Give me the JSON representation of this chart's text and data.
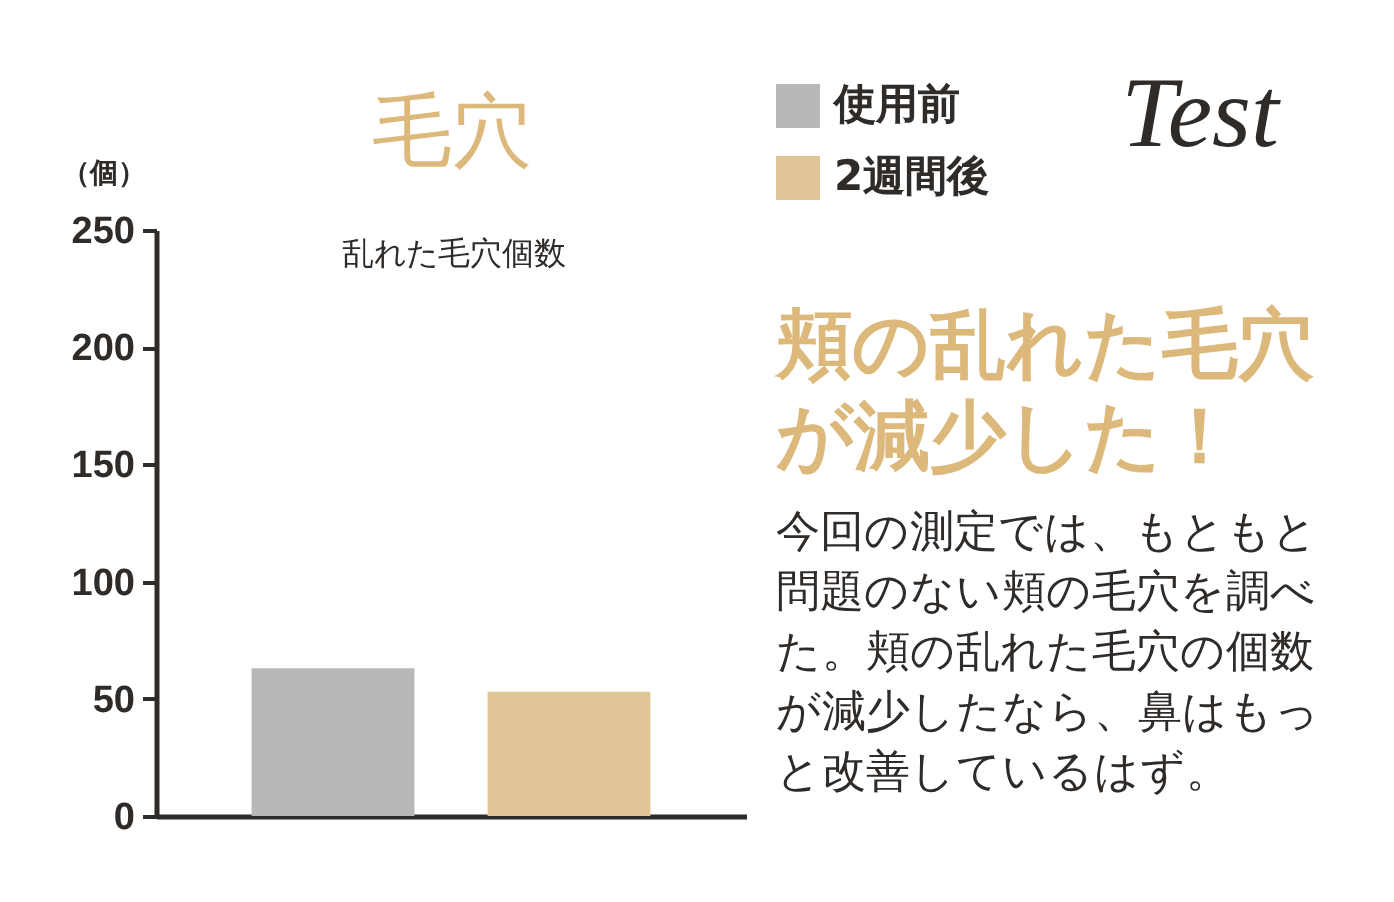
{
  "chart_data": {
    "type": "bar",
    "title": "毛穴",
    "subtitle": "乱れた毛穴個数",
    "ylabel": "（個）",
    "categories": [
      null,
      null
    ],
    "series": [
      {
        "name": "使用前",
        "color": "#b7b8b7",
        "values": [
          63,
          null
        ]
      },
      {
        "name": "2週間後",
        "color": "#e2c596",
        "values": [
          null,
          53
        ]
      }
    ],
    "ylim": [
      0,
      250
    ],
    "yticks": [
      0,
      50,
      100,
      150,
      200,
      250
    ],
    "legend": "top right",
    "tick_labels": "y",
    "annotations": [
      "Test",
      "頬の乱れた毛穴が減少した！",
      "今回の測定では、もともと問題のない頬の毛穴を調べた。頬の乱れた毛穴の個数が減少したなら、鼻はもっと改善しているはず。"
    ]
  }
}
